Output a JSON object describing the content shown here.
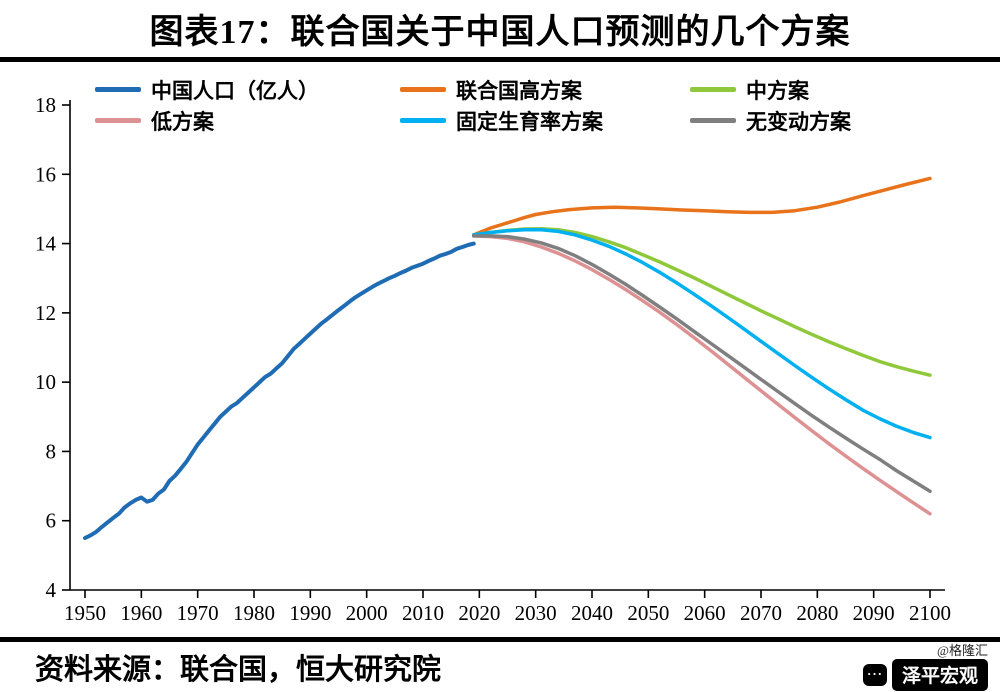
{
  "header": {
    "title": "图表17：联合国关于中国人口预测的几个方案"
  },
  "footer": {
    "source": "资料来源：联合国，恒大研究院",
    "watermark": "@格隆汇",
    "logo_text": "泽平宏观"
  },
  "chart_data": {
    "type": "line",
    "title": "图表17：联合国关于中国人口预测的几个方案",
    "xlabel": "",
    "ylabel": "",
    "x_range": [
      1950,
      2100
    ],
    "y_range": [
      4,
      18
    ],
    "x_ticks": [
      1950,
      1960,
      1970,
      1980,
      1990,
      2000,
      2010,
      2020,
      2030,
      2040,
      2050,
      2060,
      2070,
      2080,
      2090,
      2100
    ],
    "y_ticks": [
      4,
      6,
      8,
      10,
      12,
      14,
      16,
      18
    ],
    "grid": false,
    "legend_position": "top",
    "series": [
      {
        "name": "中国人口（亿人）",
        "color": "#1f6cb4",
        "points": [
          [
            1950,
            5.5
          ],
          [
            1951,
            5.58
          ],
          [
            1952,
            5.68
          ],
          [
            1953,
            5.82
          ],
          [
            1954,
            5.95
          ],
          [
            1955,
            6.08
          ],
          [
            1956,
            6.2
          ],
          [
            1957,
            6.38
          ],
          [
            1958,
            6.5
          ],
          [
            1959,
            6.6
          ],
          [
            1960,
            6.67
          ],
          [
            1961,
            6.55
          ],
          [
            1962,
            6.6
          ],
          [
            1963,
            6.78
          ],
          [
            1964,
            6.9
          ],
          [
            1965,
            7.15
          ],
          [
            1966,
            7.3
          ],
          [
            1967,
            7.5
          ],
          [
            1968,
            7.7
          ],
          [
            1969,
            7.95
          ],
          [
            1970,
            8.2
          ],
          [
            1971,
            8.4
          ],
          [
            1972,
            8.6
          ],
          [
            1973,
            8.8
          ],
          [
            1974,
            9.0
          ],
          [
            1975,
            9.15
          ],
          [
            1976,
            9.3
          ],
          [
            1977,
            9.4
          ],
          [
            1978,
            9.55
          ],
          [
            1979,
            9.7
          ],
          [
            1980,
            9.85
          ],
          [
            1981,
            10.0
          ],
          [
            1982,
            10.15
          ],
          [
            1983,
            10.25
          ],
          [
            1984,
            10.4
          ],
          [
            1985,
            10.55
          ],
          [
            1986,
            10.75
          ],
          [
            1987,
            10.95
          ],
          [
            1988,
            11.1
          ],
          [
            1989,
            11.25
          ],
          [
            1990,
            11.4
          ],
          [
            1991,
            11.55
          ],
          [
            1992,
            11.7
          ],
          [
            1993,
            11.82
          ],
          [
            1994,
            11.95
          ],
          [
            1995,
            12.08
          ],
          [
            1996,
            12.2
          ],
          [
            1997,
            12.33
          ],
          [
            1998,
            12.45
          ],
          [
            1999,
            12.55
          ],
          [
            2000,
            12.65
          ],
          [
            2001,
            12.75
          ],
          [
            2002,
            12.84
          ],
          [
            2003,
            12.92
          ],
          [
            2004,
            13.0
          ],
          [
            2005,
            13.07
          ],
          [
            2006,
            13.15
          ],
          [
            2007,
            13.22
          ],
          [
            2008,
            13.3
          ],
          [
            2009,
            13.36
          ],
          [
            2010,
            13.42
          ],
          [
            2011,
            13.5
          ],
          [
            2012,
            13.57
          ],
          [
            2013,
            13.65
          ],
          [
            2014,
            13.7
          ],
          [
            2015,
            13.76
          ],
          [
            2016,
            13.85
          ],
          [
            2017,
            13.9
          ],
          [
            2018,
            13.96
          ],
          [
            2019,
            14.0
          ]
        ]
      },
      {
        "name": "联合国高方案",
        "color": "#e8731a",
        "points": [
          [
            2019,
            14.25
          ],
          [
            2022,
            14.45
          ],
          [
            2025,
            14.6
          ],
          [
            2028,
            14.75
          ],
          [
            2030,
            14.84
          ],
          [
            2033,
            14.92
          ],
          [
            2036,
            14.98
          ],
          [
            2040,
            15.03
          ],
          [
            2044,
            15.05
          ],
          [
            2048,
            15.03
          ],
          [
            2052,
            15.0
          ],
          [
            2056,
            14.97
          ],
          [
            2060,
            14.95
          ],
          [
            2064,
            14.92
          ],
          [
            2068,
            14.9
          ],
          [
            2072,
            14.9
          ],
          [
            2076,
            14.95
          ],
          [
            2080,
            15.05
          ],
          [
            2084,
            15.2
          ],
          [
            2088,
            15.38
          ],
          [
            2092,
            15.55
          ],
          [
            2096,
            15.72
          ],
          [
            2100,
            15.88
          ]
        ]
      },
      {
        "name": "中方案",
        "color": "#90c83c",
        "points": [
          [
            2019,
            14.25
          ],
          [
            2022,
            14.32
          ],
          [
            2025,
            14.38
          ],
          [
            2028,
            14.42
          ],
          [
            2031,
            14.43
          ],
          [
            2034,
            14.4
          ],
          [
            2037,
            14.32
          ],
          [
            2040,
            14.2
          ],
          [
            2043,
            14.05
          ],
          [
            2046,
            13.88
          ],
          [
            2049,
            13.68
          ],
          [
            2052,
            13.47
          ],
          [
            2055,
            13.25
          ],
          [
            2058,
            13.02
          ],
          [
            2061,
            12.78
          ],
          [
            2064,
            12.54
          ],
          [
            2067,
            12.3
          ],
          [
            2070,
            12.06
          ],
          [
            2073,
            11.83
          ],
          [
            2076,
            11.6
          ],
          [
            2079,
            11.38
          ],
          [
            2082,
            11.17
          ],
          [
            2085,
            10.97
          ],
          [
            2088,
            10.78
          ],
          [
            2091,
            10.6
          ],
          [
            2094,
            10.45
          ],
          [
            2097,
            10.32
          ],
          [
            2100,
            10.2
          ]
        ]
      },
      {
        "name": "低方案",
        "color": "#dd9193",
        "points": [
          [
            2019,
            14.22
          ],
          [
            2022,
            14.2
          ],
          [
            2025,
            14.15
          ],
          [
            2028,
            14.05
          ],
          [
            2031,
            13.9
          ],
          [
            2034,
            13.72
          ],
          [
            2037,
            13.5
          ],
          [
            2040,
            13.25
          ],
          [
            2043,
            12.97
          ],
          [
            2046,
            12.67
          ],
          [
            2049,
            12.35
          ],
          [
            2052,
            12.02
          ],
          [
            2055,
            11.67
          ],
          [
            2058,
            11.3
          ],
          [
            2061,
            10.92
          ],
          [
            2064,
            10.53
          ],
          [
            2067,
            10.14
          ],
          [
            2070,
            9.75
          ],
          [
            2073,
            9.36
          ],
          [
            2076,
            8.98
          ],
          [
            2079,
            8.6
          ],
          [
            2082,
            8.23
          ],
          [
            2085,
            7.87
          ],
          [
            2088,
            7.52
          ],
          [
            2091,
            7.18
          ],
          [
            2094,
            6.85
          ],
          [
            2097,
            6.52
          ],
          [
            2100,
            6.2
          ]
        ]
      },
      {
        "name": "固定生育率方案",
        "color": "#00b0f0",
        "points": [
          [
            2019,
            14.25
          ],
          [
            2022,
            14.32
          ],
          [
            2025,
            14.37
          ],
          [
            2028,
            14.4
          ],
          [
            2031,
            14.4
          ],
          [
            2034,
            14.35
          ],
          [
            2037,
            14.25
          ],
          [
            2040,
            14.1
          ],
          [
            2043,
            13.92
          ],
          [
            2046,
            13.7
          ],
          [
            2049,
            13.45
          ],
          [
            2052,
            13.17
          ],
          [
            2055,
            12.87
          ],
          [
            2058,
            12.55
          ],
          [
            2061,
            12.22
          ],
          [
            2064,
            11.88
          ],
          [
            2067,
            11.53
          ],
          [
            2070,
            11.18
          ],
          [
            2073,
            10.83
          ],
          [
            2076,
            10.48
          ],
          [
            2079,
            10.14
          ],
          [
            2082,
            9.81
          ],
          [
            2085,
            9.5
          ],
          [
            2088,
            9.2
          ],
          [
            2091,
            8.95
          ],
          [
            2094,
            8.73
          ],
          [
            2097,
            8.55
          ],
          [
            2100,
            8.4
          ]
        ]
      },
      {
        "name": "无变动方案",
        "color": "#7f7f7f",
        "points": [
          [
            2019,
            14.22
          ],
          [
            2022,
            14.22
          ],
          [
            2025,
            14.2
          ],
          [
            2028,
            14.13
          ],
          [
            2031,
            14.02
          ],
          [
            2034,
            13.86
          ],
          [
            2037,
            13.65
          ],
          [
            2040,
            13.4
          ],
          [
            2043,
            13.12
          ],
          [
            2046,
            12.82
          ],
          [
            2049,
            12.5
          ],
          [
            2052,
            12.17
          ],
          [
            2055,
            11.83
          ],
          [
            2058,
            11.48
          ],
          [
            2061,
            11.13
          ],
          [
            2064,
            10.78
          ],
          [
            2067,
            10.43
          ],
          [
            2070,
            10.08
          ],
          [
            2073,
            9.73
          ],
          [
            2076,
            9.38
          ],
          [
            2079,
            9.04
          ],
          [
            2082,
            8.71
          ],
          [
            2085,
            8.39
          ],
          [
            2088,
            8.08
          ],
          [
            2091,
            7.78
          ],
          [
            2094,
            7.45
          ],
          [
            2097,
            7.15
          ],
          [
            2100,
            6.85
          ]
        ]
      }
    ]
  }
}
